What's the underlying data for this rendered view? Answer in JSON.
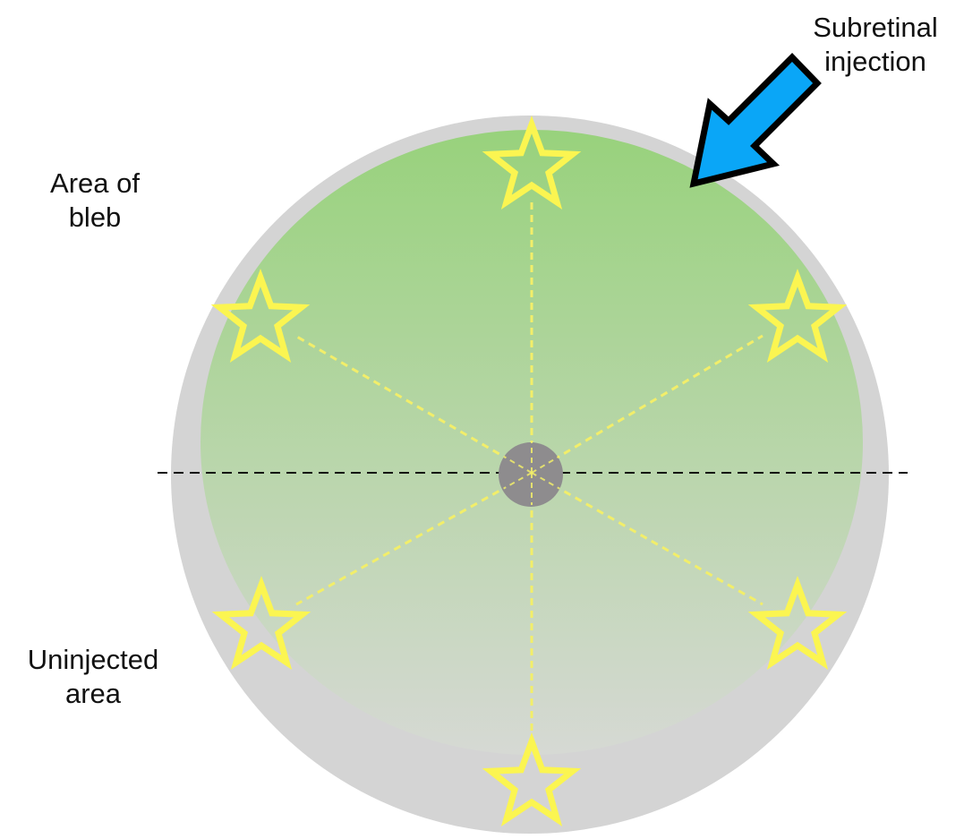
{
  "labels": {
    "subretinal_injection": [
      "Subretinal",
      "injection"
    ],
    "area_of_bleb": [
      "Area of",
      "bleb"
    ],
    "uninjected_area": [
      "Uninjected",
      "area"
    ]
  },
  "colors": {
    "eye_outer": "#d4d4d4",
    "bleb_top": "#98d27c",
    "bleb_bottom": "#d6d9d4",
    "optic_disc": "#8e8c8e",
    "star_stroke": "#fbf551",
    "spoke_line": "#f2ee6a",
    "horizontal_line": "#111111",
    "arrow_fill": "#0aa6f7",
    "arrow_stroke": "#000000",
    "text": "#111111"
  },
  "icons": {
    "injection_arrow": "arrow-icon",
    "sample_site": "star-icon",
    "optic_disc": "circle-icon"
  },
  "sample_sites": [
    {
      "id": "top"
    },
    {
      "id": "upper-right"
    },
    {
      "id": "lower-right"
    },
    {
      "id": "bottom"
    },
    {
      "id": "lower-left"
    },
    {
      "id": "upper-left"
    }
  ]
}
